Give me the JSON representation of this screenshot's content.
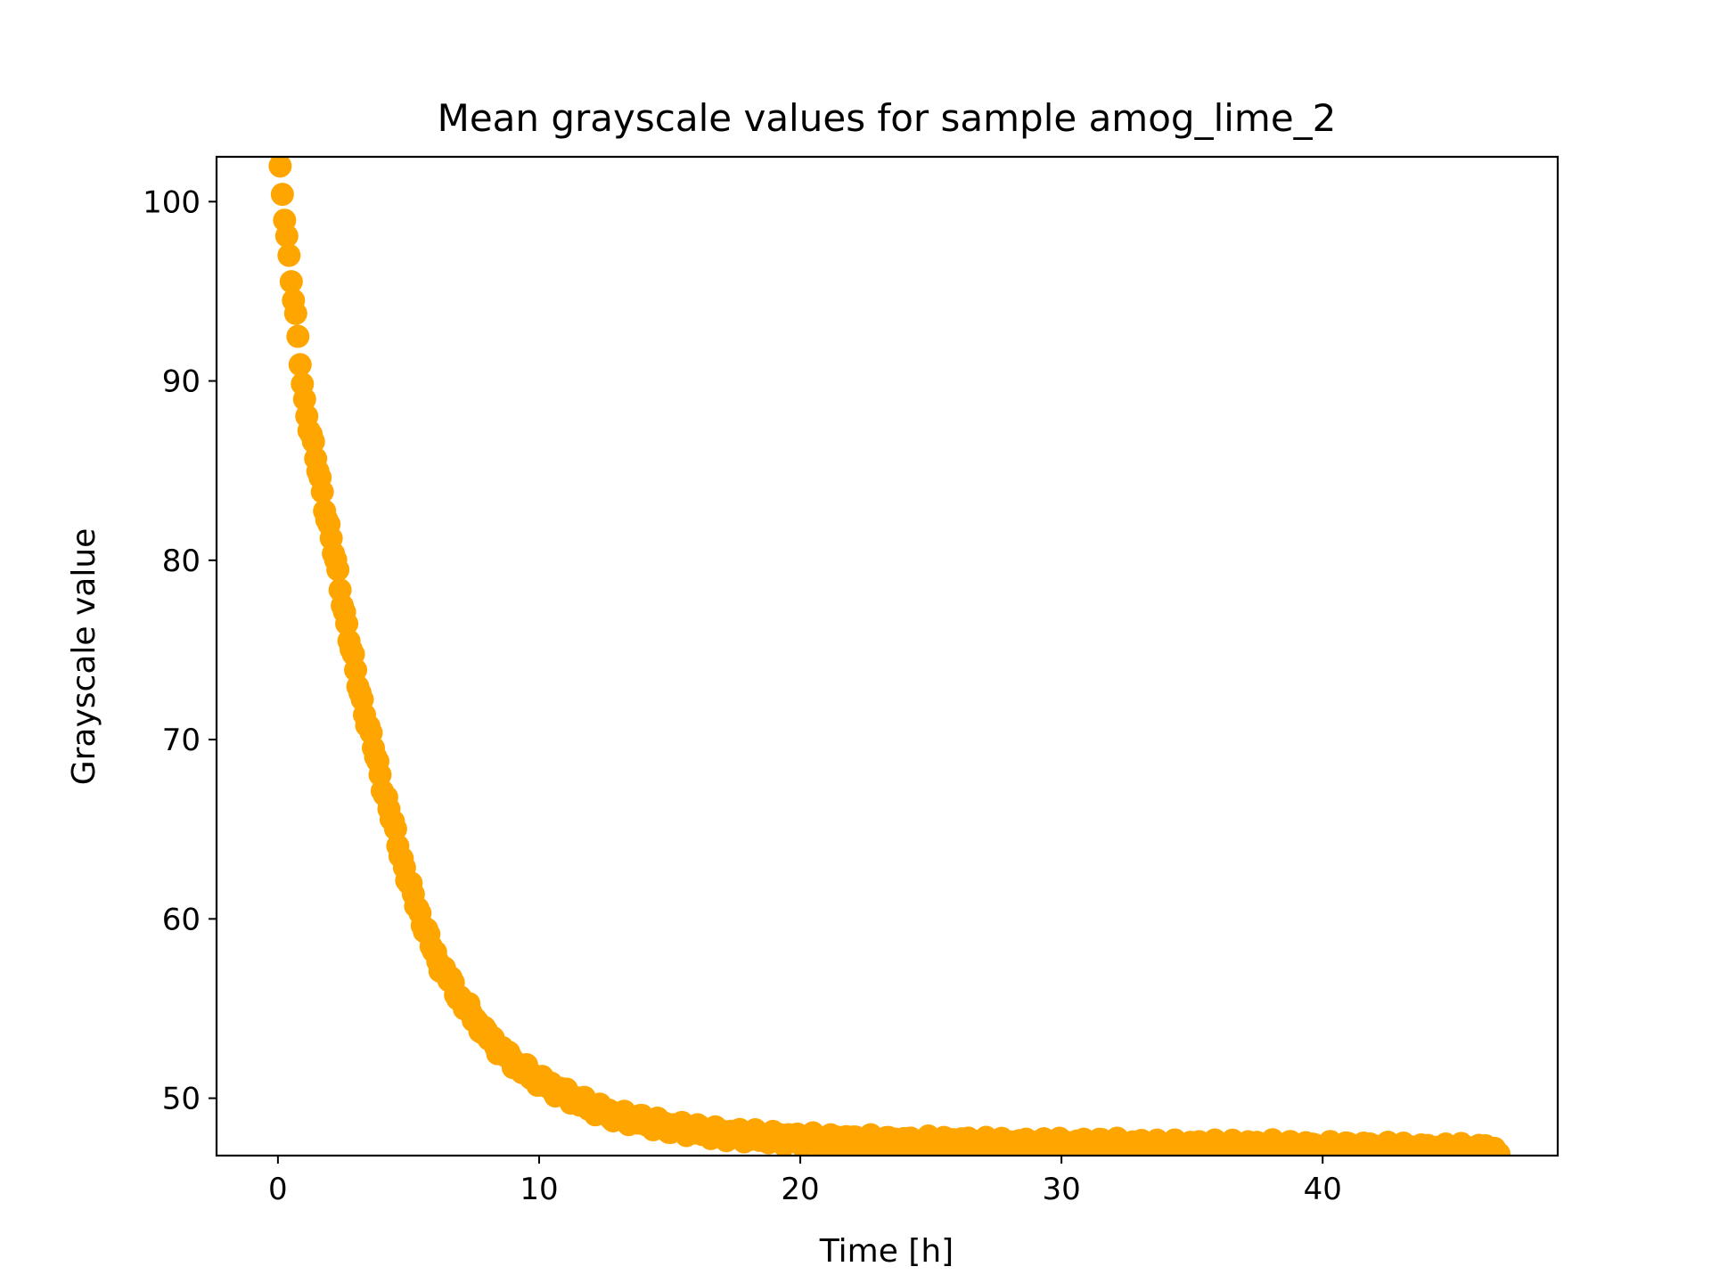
{
  "chart_data": {
    "type": "scatter",
    "title": "Mean grayscale values for sample amog_lime_2",
    "xlabel": "Time [h]",
    "ylabel": "Grayscale value",
    "xlim": [
      -2.35,
      49.0
    ],
    "ylim": [
      46.8,
      102.5
    ],
    "xticks": [
      0,
      10,
      20,
      30,
      40
    ],
    "yticks": [
      50,
      60,
      70,
      80,
      90,
      100
    ],
    "xtick_labels": [
      "0",
      "10",
      "20",
      "30",
      "40"
    ],
    "ytick_labels": [
      "50",
      "60",
      "70",
      "80",
      "90",
      "100"
    ],
    "grid": false,
    "series": [
      {
        "color": "#FFA500",
        "marker": "circle",
        "x": [
          0,
          1,
          2,
          3,
          4,
          5,
          6,
          7,
          8,
          9,
          10,
          11,
          12,
          13,
          14,
          15,
          16,
          17,
          18,
          19,
          20,
          22,
          24,
          26,
          28,
          30,
          32,
          34,
          36,
          38,
          40,
          42,
          44,
          46,
          46.8
        ],
        "y": [
          102.8,
          89.0,
          81.5,
          73.5,
          67.5,
          62.0,
          58.0,
          55.5,
          53.5,
          52.0,
          51.0,
          50.2,
          49.5,
          49.0,
          48.7,
          48.4,
          48.2,
          48.0,
          47.9,
          47.8,
          47.7,
          47.6,
          47.5,
          47.5,
          47.4,
          47.4,
          47.4,
          47.3,
          47.3,
          47.3,
          47.2,
          47.2,
          47.1,
          47.1,
          47.0
        ]
      }
    ]
  }
}
